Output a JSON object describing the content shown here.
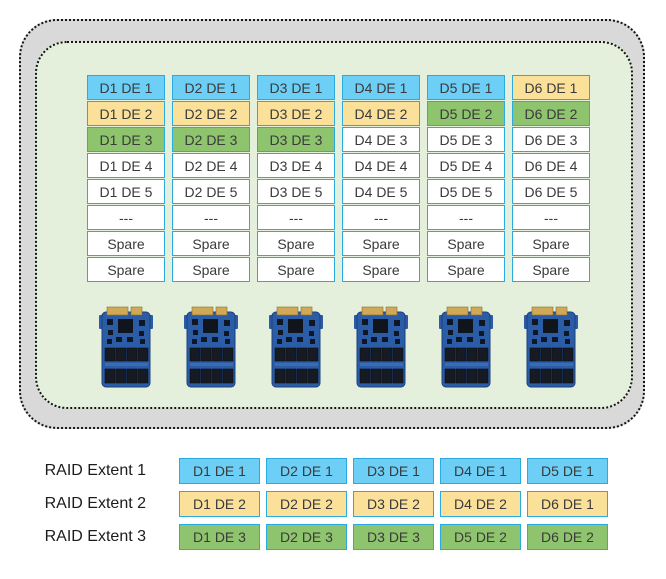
{
  "colors": {
    "blue": "#6dcff6",
    "yellow": "#fbe09a",
    "green": "#8fc46f",
    "white": "#ffffff",
    "cell_border": "#29abe2",
    "outer_box_bg": "#d9d9d9",
    "inner_box_bg": "#e4f0db",
    "cell_text": "#3a3a3a"
  },
  "drive_grid": {
    "columns": [
      {
        "drive": "D1",
        "cells": [
          {
            "label": "D1 DE 1",
            "color": "blue"
          },
          {
            "label": "D1 DE 2",
            "color": "yellow"
          },
          {
            "label": "D1 DE 3",
            "color": "green"
          },
          {
            "label": "D1 DE 4",
            "color": "white"
          },
          {
            "label": "D1 DE 5",
            "color": "white"
          },
          {
            "label": "---",
            "color": "white"
          },
          {
            "label": "Spare",
            "color": "white"
          },
          {
            "label": "Spare",
            "color": "white"
          }
        ]
      },
      {
        "drive": "D2",
        "cells": [
          {
            "label": "D2 DE 1",
            "color": "blue"
          },
          {
            "label": "D2 DE 2",
            "color": "yellow"
          },
          {
            "label": "D2 DE 3",
            "color": "green"
          },
          {
            "label": "D2 DE 4",
            "color": "white"
          },
          {
            "label": "D2 DE 5",
            "color": "white"
          },
          {
            "label": "---",
            "color": "white"
          },
          {
            "label": "Spare",
            "color": "white"
          },
          {
            "label": "Spare",
            "color": "white"
          }
        ]
      },
      {
        "drive": "D3",
        "cells": [
          {
            "label": "D3 DE 1",
            "color": "blue"
          },
          {
            "label": "D3 DE 2",
            "color": "yellow"
          },
          {
            "label": "D3 DE 3",
            "color": "green"
          },
          {
            "label": "D3 DE 4",
            "color": "white"
          },
          {
            "label": "D3 DE 5",
            "color": "white"
          },
          {
            "label": "---",
            "color": "white"
          },
          {
            "label": "Spare",
            "color": "white"
          },
          {
            "label": "Spare",
            "color": "white"
          }
        ]
      },
      {
        "drive": "D4",
        "cells": [
          {
            "label": "D4 DE 1",
            "color": "blue"
          },
          {
            "label": "D4 DE 2",
            "color": "yellow"
          },
          {
            "label": "D4 DE 3",
            "color": "white"
          },
          {
            "label": "D4 DE 4",
            "color": "white"
          },
          {
            "label": "D4 DE 5",
            "color": "white"
          },
          {
            "label": "---",
            "color": "white"
          },
          {
            "label": "Spare",
            "color": "white"
          },
          {
            "label": "Spare",
            "color": "white"
          }
        ]
      },
      {
        "drive": "D5",
        "cells": [
          {
            "label": "D5 DE 1",
            "color": "blue"
          },
          {
            "label": "D5 DE 2",
            "color": "green"
          },
          {
            "label": "D5 DE 3",
            "color": "white"
          },
          {
            "label": "D5 DE 4",
            "color": "white"
          },
          {
            "label": "D5 DE 5",
            "color": "white"
          },
          {
            "label": "---",
            "color": "white"
          },
          {
            "label": "Spare",
            "color": "white"
          },
          {
            "label": "Spare",
            "color": "white"
          }
        ]
      },
      {
        "drive": "D6",
        "cells": [
          {
            "label": "D6 DE 1",
            "color": "yellow"
          },
          {
            "label": "D6 DE 2",
            "color": "green"
          },
          {
            "label": "D6 DE 3",
            "color": "white"
          },
          {
            "label": "D6 DE 4",
            "color": "white"
          },
          {
            "label": "D6 DE 5",
            "color": "white"
          },
          {
            "label": "---",
            "color": "white"
          },
          {
            "label": "Spare",
            "color": "white"
          },
          {
            "label": "Spare",
            "color": "white"
          }
        ]
      }
    ]
  },
  "drives": {
    "count": 6,
    "icon": "ssd-drive-icon"
  },
  "raid_extents": [
    {
      "label": "RAID Extent 1",
      "cells": [
        {
          "label": "D1 DE 1",
          "color": "blue"
        },
        {
          "label": "D2 DE 1",
          "color": "blue"
        },
        {
          "label": "D3 DE 1",
          "color": "blue"
        },
        {
          "label": "D4 DE 1",
          "color": "blue"
        },
        {
          "label": "D5 DE 1",
          "color": "blue"
        }
      ]
    },
    {
      "label": "RAID Extent 2",
      "cells": [
        {
          "label": "D1 DE 2",
          "color": "yellow"
        },
        {
          "label": "D2 DE 2",
          "color": "yellow"
        },
        {
          "label": "D3 DE 2",
          "color": "yellow"
        },
        {
          "label": "D4 DE 2",
          "color": "yellow"
        },
        {
          "label": "D6 DE 1",
          "color": "yellow"
        }
      ]
    },
    {
      "label": "RAID Extent 3",
      "cells": [
        {
          "label": "D1 DE 3",
          "color": "green"
        },
        {
          "label": "D2 DE 3",
          "color": "green"
        },
        {
          "label": "D3 DE 3",
          "color": "green"
        },
        {
          "label": "D5 DE 2",
          "color": "green"
        },
        {
          "label": "D6 DE 2",
          "color": "green"
        }
      ]
    }
  ]
}
